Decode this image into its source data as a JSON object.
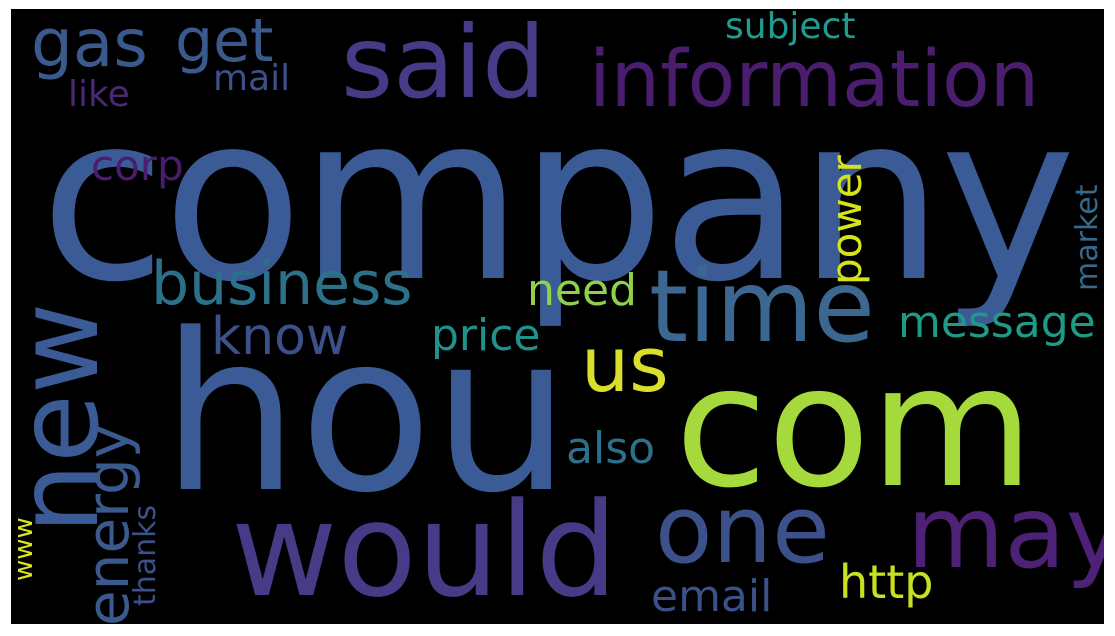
{
  "words": [
    {
      "id": "company",
      "text": "company",
      "color": "#3b5b97"
    },
    {
      "id": "hou",
      "text": "hou",
      "color": "#3b5b97"
    },
    {
      "id": "com",
      "text": "com",
      "color": "#a5d93c"
    },
    {
      "id": "would",
      "text": "would",
      "color": "#473b88"
    },
    {
      "id": "new",
      "text": "new",
      "color": "#3b5b97"
    },
    {
      "id": "said",
      "text": "said",
      "color": "#473b88"
    },
    {
      "id": "information",
      "text": "information",
      "color": "#4a1d6e"
    },
    {
      "id": "time",
      "text": "time",
      "color": "#3b6791"
    },
    {
      "id": "may",
      "text": "may",
      "color": "#4c2176"
    },
    {
      "id": "one",
      "text": "one",
      "color": "#3c5089"
    },
    {
      "id": "us",
      "text": "us",
      "color": "#d8e02b"
    },
    {
      "id": "gas",
      "text": "gas",
      "color": "#3a5a8d"
    },
    {
      "id": "get",
      "text": "get",
      "color": "#3a5a8d"
    },
    {
      "id": "business",
      "text": "business",
      "color": "#2c7189"
    },
    {
      "id": "energy",
      "text": "energy",
      "color": "#3a5a8d"
    },
    {
      "id": "know",
      "text": "know",
      "color": "#3c5089"
    },
    {
      "id": "message",
      "text": "message",
      "color": "#1f9a87"
    },
    {
      "id": "price",
      "text": "price",
      "color": "#21918c"
    },
    {
      "id": "http",
      "text": "http",
      "color": "#c8e020"
    },
    {
      "id": "need",
      "text": "need",
      "color": "#8fd14a"
    },
    {
      "id": "power",
      "text": "power",
      "color": "#d5e31c"
    },
    {
      "id": "also",
      "text": "also",
      "color": "#2c7189"
    },
    {
      "id": "email",
      "text": "email",
      "color": "#3c5089"
    },
    {
      "id": "corp",
      "text": "corp",
      "color": "#4a1d6e"
    },
    {
      "id": "subject",
      "text": "subject",
      "color": "#239a90"
    },
    {
      "id": "mail",
      "text": "mail",
      "color": "#3c5089"
    },
    {
      "id": "like",
      "text": "like",
      "color": "#4a2874"
    },
    {
      "id": "market",
      "text": "market",
      "color": "#356a8e"
    },
    {
      "id": "thanks",
      "text": "thanks",
      "color": "#3c5089"
    },
    {
      "id": "www",
      "text": "www",
      "color": "#dde41f"
    }
  ]
}
